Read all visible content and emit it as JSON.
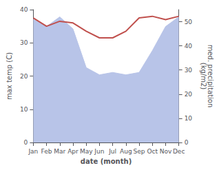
{
  "chart_data": {
    "type": "line",
    "xlabel": "date (month)",
    "ylabel": "max temp (C)",
    "y2label": "med. precipitation\n(kg/m2)",
    "categories": [
      "Jan",
      "Feb",
      "Mar",
      "Apr",
      "May",
      "Jun",
      "Jul",
      "Aug",
      "Sep",
      "Oct",
      "Nov",
      "Dec"
    ],
    "series": [
      {
        "type": "area",
        "axis": "y2",
        "color": "#b8c4e8",
        "values": [
          51,
          48,
          52,
          47,
          31,
          28,
          29,
          28,
          29,
          38,
          48,
          52
        ]
      },
      {
        "type": "line",
        "color": "#c0504d",
        "values": [
          37.5,
          35.0,
          36.5,
          36.0,
          33.5,
          31.5,
          31.5,
          33.5,
          37.5,
          38.0,
          37.0,
          38.0
        ]
      }
    ],
    "ylim": [
      0,
      40
    ],
    "yticks": [
      0,
      10,
      20,
      30,
      40
    ],
    "y2lim": [
      0,
      55
    ],
    "y2ticks": [
      0,
      10,
      20,
      30,
      40,
      50
    ],
    "grid": false
  }
}
